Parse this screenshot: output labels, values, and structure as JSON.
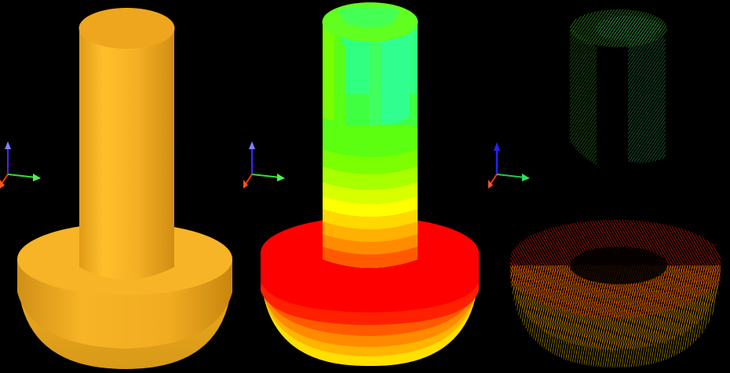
{
  "viewport": {
    "background": "#000000"
  },
  "panels": [
    {
      "render_mode": "solid-shaded",
      "base_color": "#f5b024"
    },
    {
      "render_mode": "contour-colormap"
    },
    {
      "render_mode": "contour-wireframe"
    }
  ],
  "colormap": {
    "bands_bottom_to_top": [
      "#ffd400",
      "#ff0000",
      "#ff1a00",
      "#ff5a00",
      "#ff8c00",
      "#ffb000",
      "#ffd800",
      "#ffff00",
      "#d8ff00",
      "#a8ff00",
      "#7cff00",
      "#5cff10",
      "#40ff40",
      "#30ff80"
    ]
  },
  "axis_triad": {
    "x_color": "#33dd33",
    "y_color": "#ff3300",
    "z_color": "#4422ff",
    "icon": "xyz-axis-triad-icon"
  }
}
